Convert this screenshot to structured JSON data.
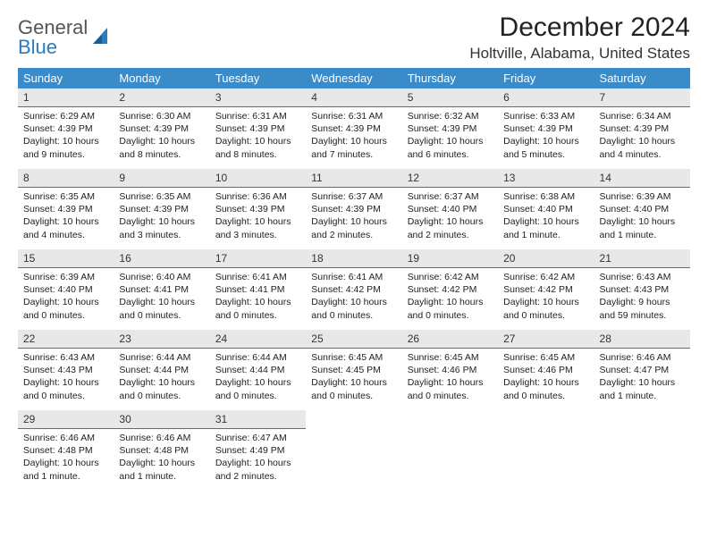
{
  "logo": {
    "line1": "General",
    "line2": "Blue"
  },
  "title": "December 2024",
  "location": "Holtville, Alabama, United States",
  "colors": {
    "header_bg": "#3b8bc9",
    "header_text": "#ffffff",
    "daynum_bg": "#e8e8e8",
    "daynum_border": "#2b7bbf",
    "logo_accent": "#2b7bbf"
  },
  "dayHeaders": [
    "Sunday",
    "Monday",
    "Tuesday",
    "Wednesday",
    "Thursday",
    "Friday",
    "Saturday"
  ],
  "weeks": [
    [
      {
        "n": "1",
        "sunrise": "Sunrise: 6:29 AM",
        "sunset": "Sunset: 4:39 PM",
        "day": "Daylight: 10 hours and 9 minutes."
      },
      {
        "n": "2",
        "sunrise": "Sunrise: 6:30 AM",
        "sunset": "Sunset: 4:39 PM",
        "day": "Daylight: 10 hours and 8 minutes."
      },
      {
        "n": "3",
        "sunrise": "Sunrise: 6:31 AM",
        "sunset": "Sunset: 4:39 PM",
        "day": "Daylight: 10 hours and 8 minutes."
      },
      {
        "n": "4",
        "sunrise": "Sunrise: 6:31 AM",
        "sunset": "Sunset: 4:39 PM",
        "day": "Daylight: 10 hours and 7 minutes."
      },
      {
        "n": "5",
        "sunrise": "Sunrise: 6:32 AM",
        "sunset": "Sunset: 4:39 PM",
        "day": "Daylight: 10 hours and 6 minutes."
      },
      {
        "n": "6",
        "sunrise": "Sunrise: 6:33 AM",
        "sunset": "Sunset: 4:39 PM",
        "day": "Daylight: 10 hours and 5 minutes."
      },
      {
        "n": "7",
        "sunrise": "Sunrise: 6:34 AM",
        "sunset": "Sunset: 4:39 PM",
        "day": "Daylight: 10 hours and 4 minutes."
      }
    ],
    [
      {
        "n": "8",
        "sunrise": "Sunrise: 6:35 AM",
        "sunset": "Sunset: 4:39 PM",
        "day": "Daylight: 10 hours and 4 minutes."
      },
      {
        "n": "9",
        "sunrise": "Sunrise: 6:35 AM",
        "sunset": "Sunset: 4:39 PM",
        "day": "Daylight: 10 hours and 3 minutes."
      },
      {
        "n": "10",
        "sunrise": "Sunrise: 6:36 AM",
        "sunset": "Sunset: 4:39 PM",
        "day": "Daylight: 10 hours and 3 minutes."
      },
      {
        "n": "11",
        "sunrise": "Sunrise: 6:37 AM",
        "sunset": "Sunset: 4:39 PM",
        "day": "Daylight: 10 hours and 2 minutes."
      },
      {
        "n": "12",
        "sunrise": "Sunrise: 6:37 AM",
        "sunset": "Sunset: 4:40 PM",
        "day": "Daylight: 10 hours and 2 minutes."
      },
      {
        "n": "13",
        "sunrise": "Sunrise: 6:38 AM",
        "sunset": "Sunset: 4:40 PM",
        "day": "Daylight: 10 hours and 1 minute."
      },
      {
        "n": "14",
        "sunrise": "Sunrise: 6:39 AM",
        "sunset": "Sunset: 4:40 PM",
        "day": "Daylight: 10 hours and 1 minute."
      }
    ],
    [
      {
        "n": "15",
        "sunrise": "Sunrise: 6:39 AM",
        "sunset": "Sunset: 4:40 PM",
        "day": "Daylight: 10 hours and 0 minutes."
      },
      {
        "n": "16",
        "sunrise": "Sunrise: 6:40 AM",
        "sunset": "Sunset: 4:41 PM",
        "day": "Daylight: 10 hours and 0 minutes."
      },
      {
        "n": "17",
        "sunrise": "Sunrise: 6:41 AM",
        "sunset": "Sunset: 4:41 PM",
        "day": "Daylight: 10 hours and 0 minutes."
      },
      {
        "n": "18",
        "sunrise": "Sunrise: 6:41 AM",
        "sunset": "Sunset: 4:42 PM",
        "day": "Daylight: 10 hours and 0 minutes."
      },
      {
        "n": "19",
        "sunrise": "Sunrise: 6:42 AM",
        "sunset": "Sunset: 4:42 PM",
        "day": "Daylight: 10 hours and 0 minutes."
      },
      {
        "n": "20",
        "sunrise": "Sunrise: 6:42 AM",
        "sunset": "Sunset: 4:42 PM",
        "day": "Daylight: 10 hours and 0 minutes."
      },
      {
        "n": "21",
        "sunrise": "Sunrise: 6:43 AM",
        "sunset": "Sunset: 4:43 PM",
        "day": "Daylight: 9 hours and 59 minutes."
      }
    ],
    [
      {
        "n": "22",
        "sunrise": "Sunrise: 6:43 AM",
        "sunset": "Sunset: 4:43 PM",
        "day": "Daylight: 10 hours and 0 minutes."
      },
      {
        "n": "23",
        "sunrise": "Sunrise: 6:44 AM",
        "sunset": "Sunset: 4:44 PM",
        "day": "Daylight: 10 hours and 0 minutes."
      },
      {
        "n": "24",
        "sunrise": "Sunrise: 6:44 AM",
        "sunset": "Sunset: 4:44 PM",
        "day": "Daylight: 10 hours and 0 minutes."
      },
      {
        "n": "25",
        "sunrise": "Sunrise: 6:45 AM",
        "sunset": "Sunset: 4:45 PM",
        "day": "Daylight: 10 hours and 0 minutes."
      },
      {
        "n": "26",
        "sunrise": "Sunrise: 6:45 AM",
        "sunset": "Sunset: 4:46 PM",
        "day": "Daylight: 10 hours and 0 minutes."
      },
      {
        "n": "27",
        "sunrise": "Sunrise: 6:45 AM",
        "sunset": "Sunset: 4:46 PM",
        "day": "Daylight: 10 hours and 0 minutes."
      },
      {
        "n": "28",
        "sunrise": "Sunrise: 6:46 AM",
        "sunset": "Sunset: 4:47 PM",
        "day": "Daylight: 10 hours and 1 minute."
      }
    ],
    [
      {
        "n": "29",
        "sunrise": "Sunrise: 6:46 AM",
        "sunset": "Sunset: 4:48 PM",
        "day": "Daylight: 10 hours and 1 minute."
      },
      {
        "n": "30",
        "sunrise": "Sunrise: 6:46 AM",
        "sunset": "Sunset: 4:48 PM",
        "day": "Daylight: 10 hours and 1 minute."
      },
      {
        "n": "31",
        "sunrise": "Sunrise: 6:47 AM",
        "sunset": "Sunset: 4:49 PM",
        "day": "Daylight: 10 hours and 2 minutes."
      },
      null,
      null,
      null,
      null
    ]
  ]
}
